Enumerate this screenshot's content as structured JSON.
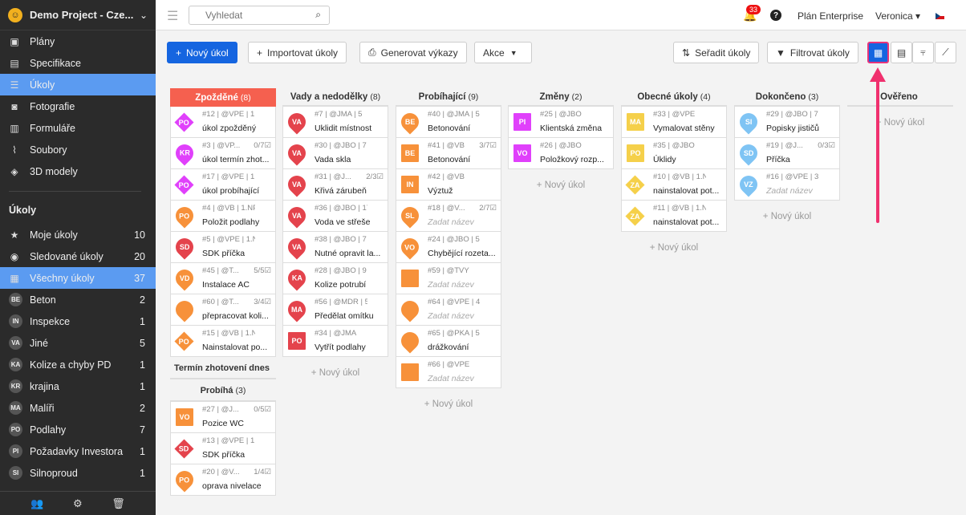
{
  "sidebar": {
    "project": "Demo Project - Cze...",
    "nav": [
      {
        "label": "Plány",
        "icon": "plans-icon"
      },
      {
        "label": "Specifikace",
        "icon": "specs-icon"
      },
      {
        "label": "Úkoly",
        "icon": "tasks-icon",
        "active": true
      },
      {
        "label": "Fotografie",
        "icon": "camera-icon"
      },
      {
        "label": "Formuláře",
        "icon": "forms-icon"
      },
      {
        "label": "Soubory",
        "icon": "paperclip-icon"
      },
      {
        "label": "3D modely",
        "icon": "cube-icon"
      }
    ],
    "section_title": "Úkoly",
    "filters": [
      {
        "label": "Moje úkoly",
        "count": "10",
        "icon": "star-icon"
      },
      {
        "label": "Sledované úkoly",
        "count": "20",
        "icon": "eye-icon"
      },
      {
        "label": "Všechny úkoly",
        "count": "37",
        "icon": "grid-icon",
        "active": true
      }
    ],
    "categories": [
      {
        "abbr": "BE",
        "label": "Beton",
        "count": "2"
      },
      {
        "abbr": "IN",
        "label": "Inspekce",
        "count": "1"
      },
      {
        "abbr": "VA",
        "label": "Jiné",
        "count": "5"
      },
      {
        "abbr": "KA",
        "label": "Kolize a chyby PD",
        "count": "1"
      },
      {
        "abbr": "KR",
        "label": "krajina",
        "count": "1"
      },
      {
        "abbr": "MA",
        "label": "Malíři",
        "count": "2"
      },
      {
        "abbr": "PO",
        "label": "Podlahy",
        "count": "7"
      },
      {
        "abbr": "PI",
        "label": "Požadavky Investora",
        "count": "1"
      },
      {
        "abbr": "SI",
        "label": "Silnoproud",
        "count": "1"
      }
    ]
  },
  "topbar": {
    "search_placeholder": "Vyhledat",
    "notifications": "33",
    "plan": "Plán Enterprise",
    "user": "Veronica"
  },
  "toolbar": {
    "new_task": "Nový úkol",
    "import": "Importovat úkoly",
    "reports": "Generovat výkazy",
    "actions": "Akce",
    "sort": "Seřadit úkoly",
    "filter": "Filtrovat úkoly"
  },
  "colors": {
    "primary": "#1565e0",
    "overdue": "#f5604f",
    "sidebar": "#2b2b2b",
    "active": "#5b9bf1",
    "highlight": "#e8347a"
  },
  "board": {
    "new_task_label": "+ Nový úkol",
    "placeholder_title": "Zadat název",
    "columns": [
      {
        "title": "Zpožděné",
        "count": "(8)",
        "highlight": true,
        "cards": [
          {
            "abbr": "PO",
            "shape": "diamond",
            "color": "#e040fb",
            "meta": "#12 | @VPE | 1.N...",
            "title": "úkol zpožděný"
          },
          {
            "abbr": "KR",
            "shape": "pin",
            "color": "#e040fb",
            "meta": "#3 | @VP...",
            "check": "0/7☑",
            "title": "úkol termín zhot..."
          },
          {
            "abbr": "PO",
            "shape": "diamond",
            "color": "#e040fb",
            "meta": "#17 | @VPE | 1.N...",
            "title": "úkol probíhající"
          },
          {
            "abbr": "PO",
            "shape": "pin",
            "color": "#f7913a",
            "meta": "#4 | @VB | 1.NP T...",
            "title": "Položit podlahy"
          },
          {
            "abbr": "SD",
            "shape": "pin",
            "color": "#e4434c",
            "meta": "#5 | @VPE | 1.NP ...",
            "title": "SDK příčka"
          },
          {
            "abbr": "VD",
            "shape": "pin",
            "color": "#f7913a",
            "meta": "#45 | @T...",
            "check": "5/5☑",
            "title": "Instalace AC"
          },
          {
            "abbr": "",
            "shape": "pin",
            "color": "#f7913a",
            "meta": "#60 | @T...",
            "check": "3/4☑",
            "title": "přepracovat koli..."
          },
          {
            "abbr": "PO",
            "shape": "diamond",
            "color": "#f7913a",
            "meta": "#15 | @VB | 1.NP ...",
            "title": "Nainstalovat po..."
          }
        ],
        "extra_groups": [
          {
            "title": "Termín zhotovení dnes",
            "count": "",
            "cards": []
          },
          {
            "title": "Probíhá",
            "count": "(3)",
            "cards": [
              {
                "abbr": "VO",
                "shape": "square",
                "color": "#f7913a",
                "meta": "#27 | @J...",
                "check": "0/5☑",
                "title": "Pozice WC"
              },
              {
                "abbr": "SD",
                "shape": "diamond",
                "color": "#e4434c",
                "meta": "#13 | @VPE | 1.N...",
                "title": "SDK příčka"
              },
              {
                "abbr": "PO",
                "shape": "pin",
                "color": "#f7913a",
                "meta": "#20 | @V...",
                "check": "1/4☑",
                "title": "oprava nivelace"
              }
            ]
          }
        ]
      },
      {
        "title": "Vady a nedodělky",
        "count": "(8)",
        "cards": [
          {
            "abbr": "VA",
            "shape": "pin",
            "color": "#e4434c",
            "meta": "#7 | @JMA | 5",
            "title": "Uklidit místnost"
          },
          {
            "abbr": "VA",
            "shape": "pin",
            "color": "#e4434c",
            "meta": "#30 | @JBO | 7",
            "title": "Vada skla"
          },
          {
            "abbr": "VA",
            "shape": "pin",
            "color": "#e4434c",
            "meta": "#31 | @J...",
            "check": "2/3☑",
            "title": "Křivá zárubeň"
          },
          {
            "abbr": "VA",
            "shape": "pin",
            "color": "#e4434c",
            "meta": "#36 | @JBO | 17",
            "title": "Voda ve střeše"
          },
          {
            "abbr": "VA",
            "shape": "pin",
            "color": "#e4434c",
            "meta": "#38 | @JBO | 7",
            "title": "Nutné opravit la..."
          },
          {
            "abbr": "KA",
            "shape": "pin",
            "color": "#e4434c",
            "meta": "#28 | @JBO | 9",
            "title": "Kolize potrubí"
          },
          {
            "abbr": "MA",
            "shape": "pin",
            "color": "#e4434c",
            "meta": "#56 | @MDR | 5",
            "title": "Předělat omítku"
          },
          {
            "abbr": "PO",
            "shape": "square",
            "color": "#e4434c",
            "meta": "#34 | @JMA",
            "title": "Vytřít podlahy"
          }
        ]
      },
      {
        "title": "Probíhající",
        "count": "(9)",
        "cards": [
          {
            "abbr": "BE",
            "shape": "pin",
            "color": "#f7913a",
            "meta": "#40 | @JMA | 5",
            "title": "Betonování"
          },
          {
            "abbr": "BE",
            "shape": "square",
            "color": "#f7913a",
            "meta": "#41 | @VB",
            "check": "3/7☑",
            "title": "Betonování"
          },
          {
            "abbr": "IN",
            "shape": "square",
            "color": "#f7913a",
            "meta": "#42 | @VB",
            "title": "Výztuž"
          },
          {
            "abbr": "SL",
            "shape": "pin",
            "color": "#f7913a",
            "meta": "#18 | @V...",
            "check": "2/7☑",
            "title": "Zadat název",
            "ph": true
          },
          {
            "abbr": "VO",
            "shape": "pin",
            "color": "#f7913a",
            "meta": "#24 | @JBO | 5",
            "title": "Chybějící rozeta..."
          },
          {
            "abbr": "",
            "shape": "square",
            "color": "#f7913a",
            "meta": "#59 | @TVY",
            "title": "Zadat název",
            "ph": true
          },
          {
            "abbr": "",
            "shape": "pin",
            "color": "#f7913a",
            "meta": "#64 | @VPE | 4",
            "title": "Zadat název",
            "ph": true
          },
          {
            "abbr": "",
            "shape": "pin",
            "color": "#f7913a",
            "meta": "#65 | @PKA | 5",
            "title": "drážkování"
          },
          {
            "abbr": "",
            "shape": "square",
            "color": "#f7913a",
            "meta": "#66 | @VPE",
            "title": "Zadat název",
            "ph": true
          }
        ]
      },
      {
        "title": "Změny",
        "count": "(2)",
        "cards": [
          {
            "abbr": "PI",
            "shape": "square",
            "color": "#e040fb",
            "meta": "#25 | @JBO",
            "title": "Klientská změna"
          },
          {
            "abbr": "VO",
            "shape": "square",
            "color": "#e040fb",
            "meta": "#26 | @JBO",
            "title": "Položkový rozp..."
          }
        ]
      },
      {
        "title": "Obecné úkoly",
        "count": "(4)",
        "cards": [
          {
            "abbr": "MA",
            "shape": "square",
            "color": "#f5d04a",
            "meta": "#33 | @VPE",
            "title": "Vymalovat stěny"
          },
          {
            "abbr": "PO",
            "shape": "square",
            "color": "#f5d04a",
            "meta": "#35 | @JBO",
            "title": "Úklidy"
          },
          {
            "abbr": "ZA",
            "shape": "diamond",
            "color": "#f5d04a",
            "meta": "#10 | @VB | 1.NP...",
            "title": "nainstalovat pot..."
          },
          {
            "abbr": "ZA",
            "shape": "diamond",
            "color": "#f5d04a",
            "meta": "#11 | @VB | 1.NP ...",
            "title": "nainstalovat pot..."
          }
        ]
      },
      {
        "title": "Dokončeno",
        "count": "(3)",
        "cards": [
          {
            "abbr": "SI",
            "shape": "pin",
            "color": "#7fc4f4",
            "meta": "#29 | @JBO | 7",
            "title": "Popisky jističů"
          },
          {
            "abbr": "SD",
            "shape": "pin",
            "color": "#7fc4f4",
            "meta": "#19 | @J...",
            "check": "0/3☑",
            "title": "Příčka"
          },
          {
            "abbr": "VZ",
            "shape": "pin",
            "color": "#7fc4f4",
            "meta": "#16 | @VPE | 3.N...",
            "title": "Zadat název",
            "ph": true
          }
        ]
      },
      {
        "title": "Ověřeno",
        "count": "",
        "cards": []
      }
    ]
  }
}
